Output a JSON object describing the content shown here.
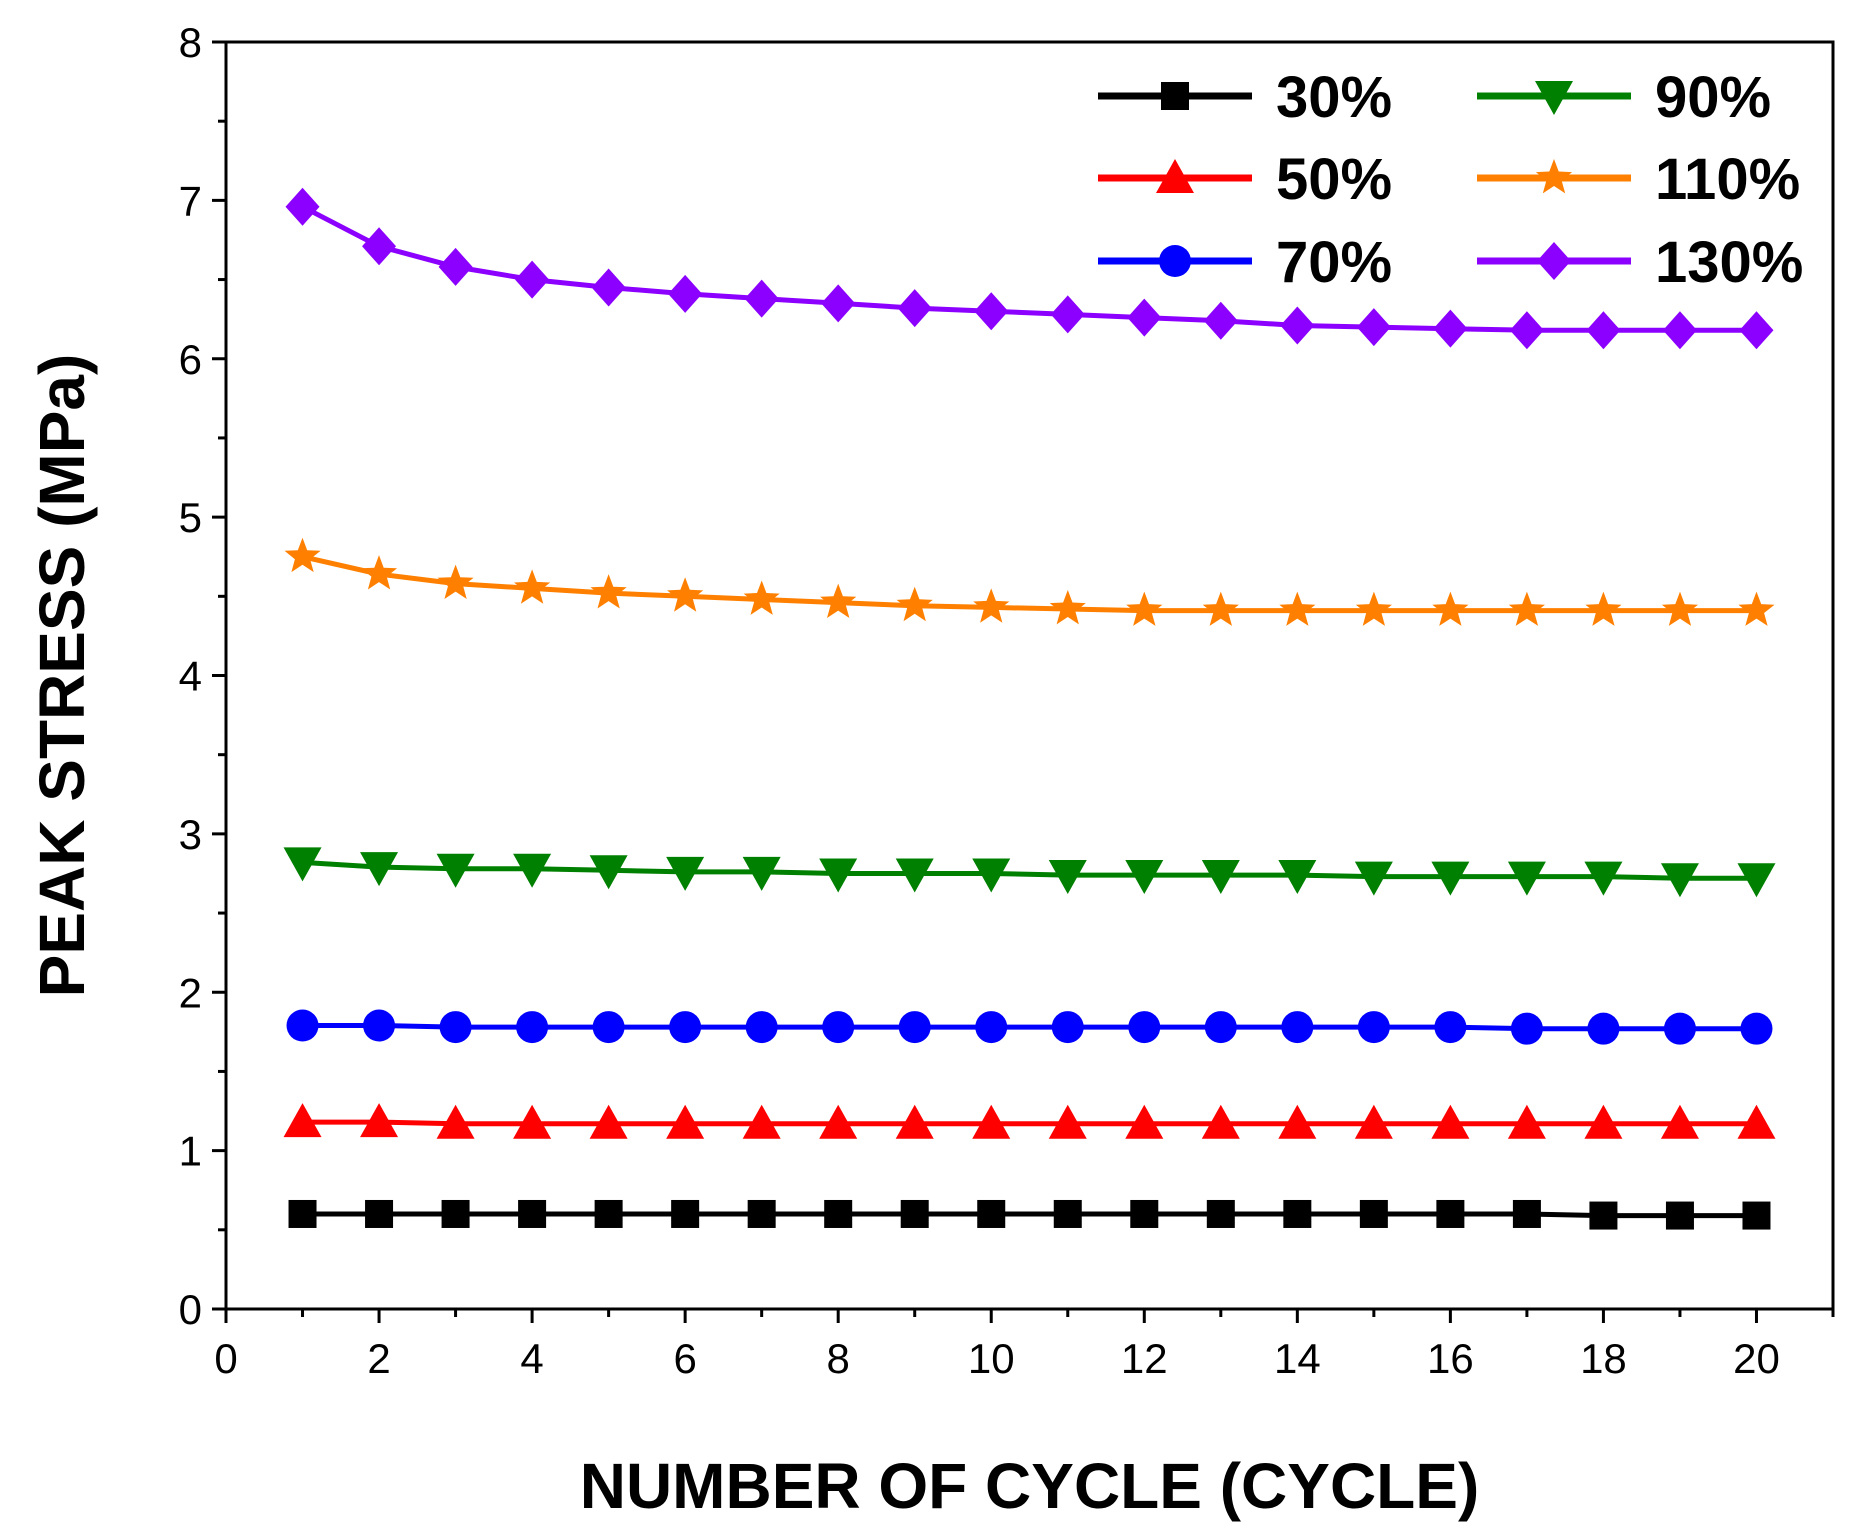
{
  "chart_data": {
    "type": "line",
    "title": "",
    "xlabel": "NUMBER OF CYCLE (CYCLE)",
    "ylabel": "PEAK STRESS (MPa)",
    "xlim": [
      0,
      21
    ],
    "ylim": [
      0,
      8
    ],
    "x_ticks": [
      "0",
      "2",
      "4",
      "6",
      "8",
      "10",
      "12",
      "14",
      "16",
      "18",
      "20"
    ],
    "y_ticks": [
      "0",
      "1",
      "2",
      "3",
      "4",
      "5",
      "6",
      "7",
      "8"
    ],
    "grid": false,
    "legend_position": "top-right",
    "x": [
      1,
      2,
      3,
      4,
      5,
      6,
      7,
      8,
      9,
      10,
      11,
      12,
      13,
      14,
      15,
      16,
      17,
      18,
      19,
      20
    ],
    "series": [
      {
        "name": "30%",
        "color": "#000000",
        "marker": "square",
        "values": [
          0.6,
          0.6,
          0.6,
          0.6,
          0.6,
          0.6,
          0.6,
          0.6,
          0.6,
          0.6,
          0.6,
          0.6,
          0.6,
          0.6,
          0.6,
          0.6,
          0.6,
          0.59,
          0.59,
          0.59
        ]
      },
      {
        "name": "50%",
        "color": "#ff0000",
        "marker": "triangle-up",
        "values": [
          1.18,
          1.18,
          1.17,
          1.17,
          1.17,
          1.17,
          1.17,
          1.17,
          1.17,
          1.17,
          1.17,
          1.17,
          1.17,
          1.17,
          1.17,
          1.17,
          1.17,
          1.17,
          1.17,
          1.17
        ]
      },
      {
        "name": "70%",
        "color": "#0000ff",
        "marker": "circle",
        "values": [
          1.79,
          1.79,
          1.78,
          1.78,
          1.78,
          1.78,
          1.78,
          1.78,
          1.78,
          1.78,
          1.78,
          1.78,
          1.78,
          1.78,
          1.78,
          1.78,
          1.77,
          1.77,
          1.77,
          1.77
        ]
      },
      {
        "name": "90%",
        "color": "#008000",
        "marker": "triangle-down",
        "values": [
          2.82,
          2.79,
          2.78,
          2.78,
          2.77,
          2.76,
          2.76,
          2.75,
          2.75,
          2.75,
          2.74,
          2.74,
          2.74,
          2.74,
          2.73,
          2.73,
          2.73,
          2.73,
          2.72,
          2.72
        ]
      },
      {
        "name": "110%",
        "color": "#ff8000",
        "marker": "star",
        "values": [
          4.75,
          4.64,
          4.58,
          4.55,
          4.52,
          4.5,
          4.48,
          4.46,
          4.44,
          4.43,
          4.42,
          4.41,
          4.41,
          4.41,
          4.41,
          4.41,
          4.41,
          4.41,
          4.41,
          4.41
        ]
      },
      {
        "name": "130%",
        "color": "#8b00ff",
        "marker": "diamond",
        "values": [
          6.96,
          6.71,
          6.58,
          6.5,
          6.45,
          6.41,
          6.38,
          6.35,
          6.32,
          6.3,
          6.28,
          6.26,
          6.24,
          6.21,
          6.2,
          6.19,
          6.18,
          6.18,
          6.18,
          6.18
        ]
      }
    ]
  }
}
